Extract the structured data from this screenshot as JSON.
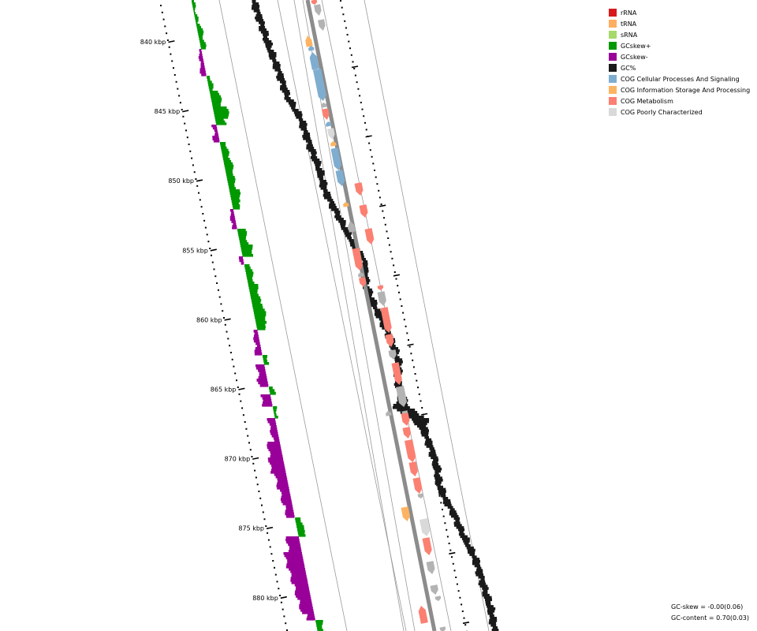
{
  "legend": {
    "items": [
      {
        "label": "rRNA",
        "color": "#d7191c"
      },
      {
        "label": "tRNA",
        "color": "#fdae61"
      },
      {
        "label": "sRNA",
        "color": "#a6d96a"
      },
      {
        "label": "GCskew+",
        "color": "#009900"
      },
      {
        "label": "GCskew-",
        "color": "#990099"
      },
      {
        "label": "GC%",
        "color": "#1a1a1a"
      },
      {
        "label": "COG Cellular Processes And Signaling",
        "color": "#7fadd0"
      },
      {
        "label": "COG Information Storage And Processing",
        "color": "#fdb462"
      },
      {
        "label": "COG Metabolism",
        "color": "#fb8072"
      },
      {
        "label": "COG Poorly Characterized",
        "color": "#d9d9d9"
      }
    ]
  },
  "ruler": {
    "ticks": [
      "840 kbp",
      "845 kbp",
      "850 kbp",
      "855 kbp",
      "860 kbp",
      "865 kbp",
      "870 kbp",
      "875 kbp",
      "880 kbp"
    ]
  },
  "stats": {
    "gc_skew": "GC-skew = -0.00(0.06)",
    "gc_content": "GC-content = 0.70(0.03)"
  }
}
